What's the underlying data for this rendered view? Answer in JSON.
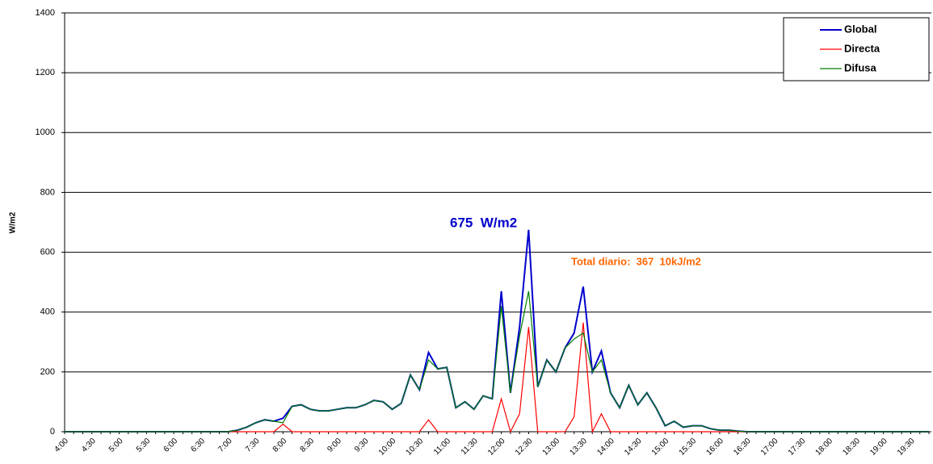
{
  "chart_data": {
    "type": "line",
    "y_label": "W/m2",
    "categories": [
      "4:00",
      null,
      null,
      "4:30",
      null,
      null,
      "5:00",
      null,
      null,
      "5:30",
      null,
      null,
      "6:00",
      null,
      null,
      "6:30",
      null,
      null,
      "7:00",
      null,
      null,
      "7:30",
      null,
      null,
      "8:00",
      null,
      null,
      "8:30",
      null,
      null,
      "9:00",
      null,
      null,
      "9:30",
      null,
      null,
      "10:00",
      null,
      null,
      "10:30",
      null,
      null,
      "11:00",
      null,
      null,
      "11:30",
      null,
      null,
      "12:00",
      null,
      null,
      "12:30",
      null,
      null,
      "13:00",
      null,
      null,
      "13:30",
      null,
      null,
      "14:00",
      null,
      null,
      "14:30",
      null,
      null,
      "15:00",
      null,
      null,
      "15:30",
      null,
      null,
      "16:00",
      null,
      null,
      "16:30",
      null,
      null,
      "17:00",
      null,
      null,
      "17:30",
      null,
      null,
      "18:00",
      null,
      null,
      "18:30",
      null,
      null,
      "19:00",
      null,
      null,
      "19:30",
      null,
      null
    ],
    "series": [
      {
        "name": "Global",
        "color": "#0000cc",
        "values": [
          0,
          0,
          0,
          0,
          0,
          0,
          0,
          0,
          0,
          0,
          0,
          0,
          0,
          0,
          0,
          0,
          0,
          0,
          0,
          5,
          15,
          30,
          40,
          35,
          45,
          85,
          90,
          75,
          70,
          70,
          75,
          80,
          80,
          90,
          105,
          100,
          75,
          95,
          190,
          140,
          265,
          210,
          215,
          80,
          100,
          75,
          120,
          110,
          470,
          130,
          350,
          675,
          150,
          240,
          200,
          280,
          330,
          485,
          200,
          270,
          130,
          80,
          155,
          90,
          130,
          80,
          20,
          35,
          15,
          20,
          20,
          10,
          5,
          5,
          2,
          0,
          0,
          0,
          0,
          0,
          0,
          0,
          0,
          0,
          0,
          0,
          0,
          0,
          0,
          0,
          0,
          0,
          0,
          0,
          0,
          0
        ]
      },
      {
        "name": "Directa",
        "color": "#ff0000",
        "values": [
          0,
          0,
          0,
          0,
          0,
          0,
          0,
          0,
          0,
          0,
          0,
          0,
          0,
          0,
          0,
          0,
          0,
          0,
          0,
          0,
          0,
          0,
          0,
          0,
          25,
          0,
          0,
          0,
          0,
          0,
          0,
          0,
          0,
          0,
          0,
          0,
          0,
          0,
          0,
          0,
          40,
          0,
          0,
          0,
          0,
          0,
          0,
          0,
          110,
          0,
          60,
          350,
          0,
          0,
          0,
          0,
          50,
          365,
          0,
          60,
          0,
          0,
          0,
          0,
          0,
          0,
          0,
          0,
          0,
          0,
          0,
          0,
          0,
          0,
          0,
          0,
          0,
          0,
          0,
          0,
          0,
          0,
          0,
          0,
          0,
          0,
          0,
          0,
          0,
          0,
          0,
          0,
          0,
          0,
          0,
          0
        ]
      },
      {
        "name": "Difusa",
        "color": "#008000",
        "values": [
          0,
          0,
          0,
          0,
          0,
          0,
          0,
          0,
          0,
          0,
          0,
          0,
          0,
          0,
          0,
          0,
          0,
          0,
          0,
          5,
          15,
          30,
          40,
          35,
          30,
          85,
          90,
          75,
          70,
          70,
          75,
          80,
          80,
          90,
          105,
          100,
          75,
          95,
          190,
          140,
          240,
          210,
          215,
          80,
          100,
          75,
          120,
          110,
          420,
          130,
          320,
          470,
          150,
          240,
          200,
          280,
          310,
          330,
          200,
          240,
          130,
          80,
          155,
          90,
          130,
          80,
          20,
          35,
          15,
          20,
          20,
          10,
          5,
          5,
          2,
          0,
          0,
          0,
          0,
          0,
          0,
          0,
          0,
          0,
          0,
          0,
          0,
          0,
          0,
          0,
          0,
          0,
          0,
          0,
          0,
          0
        ]
      }
    ],
    "ylim": [
      0,
      1400
    ],
    "yticks": [
      0,
      200,
      400,
      600,
      800,
      1000,
      1200,
      1400
    ],
    "grid": true,
    "legend": "upper right",
    "annotations": [
      {
        "text": "675  W/m2",
        "color": "#0000cc"
      },
      {
        "text": "Total diario:  367  10kJ/m2",
        "color": "#ff6600"
      }
    ]
  }
}
